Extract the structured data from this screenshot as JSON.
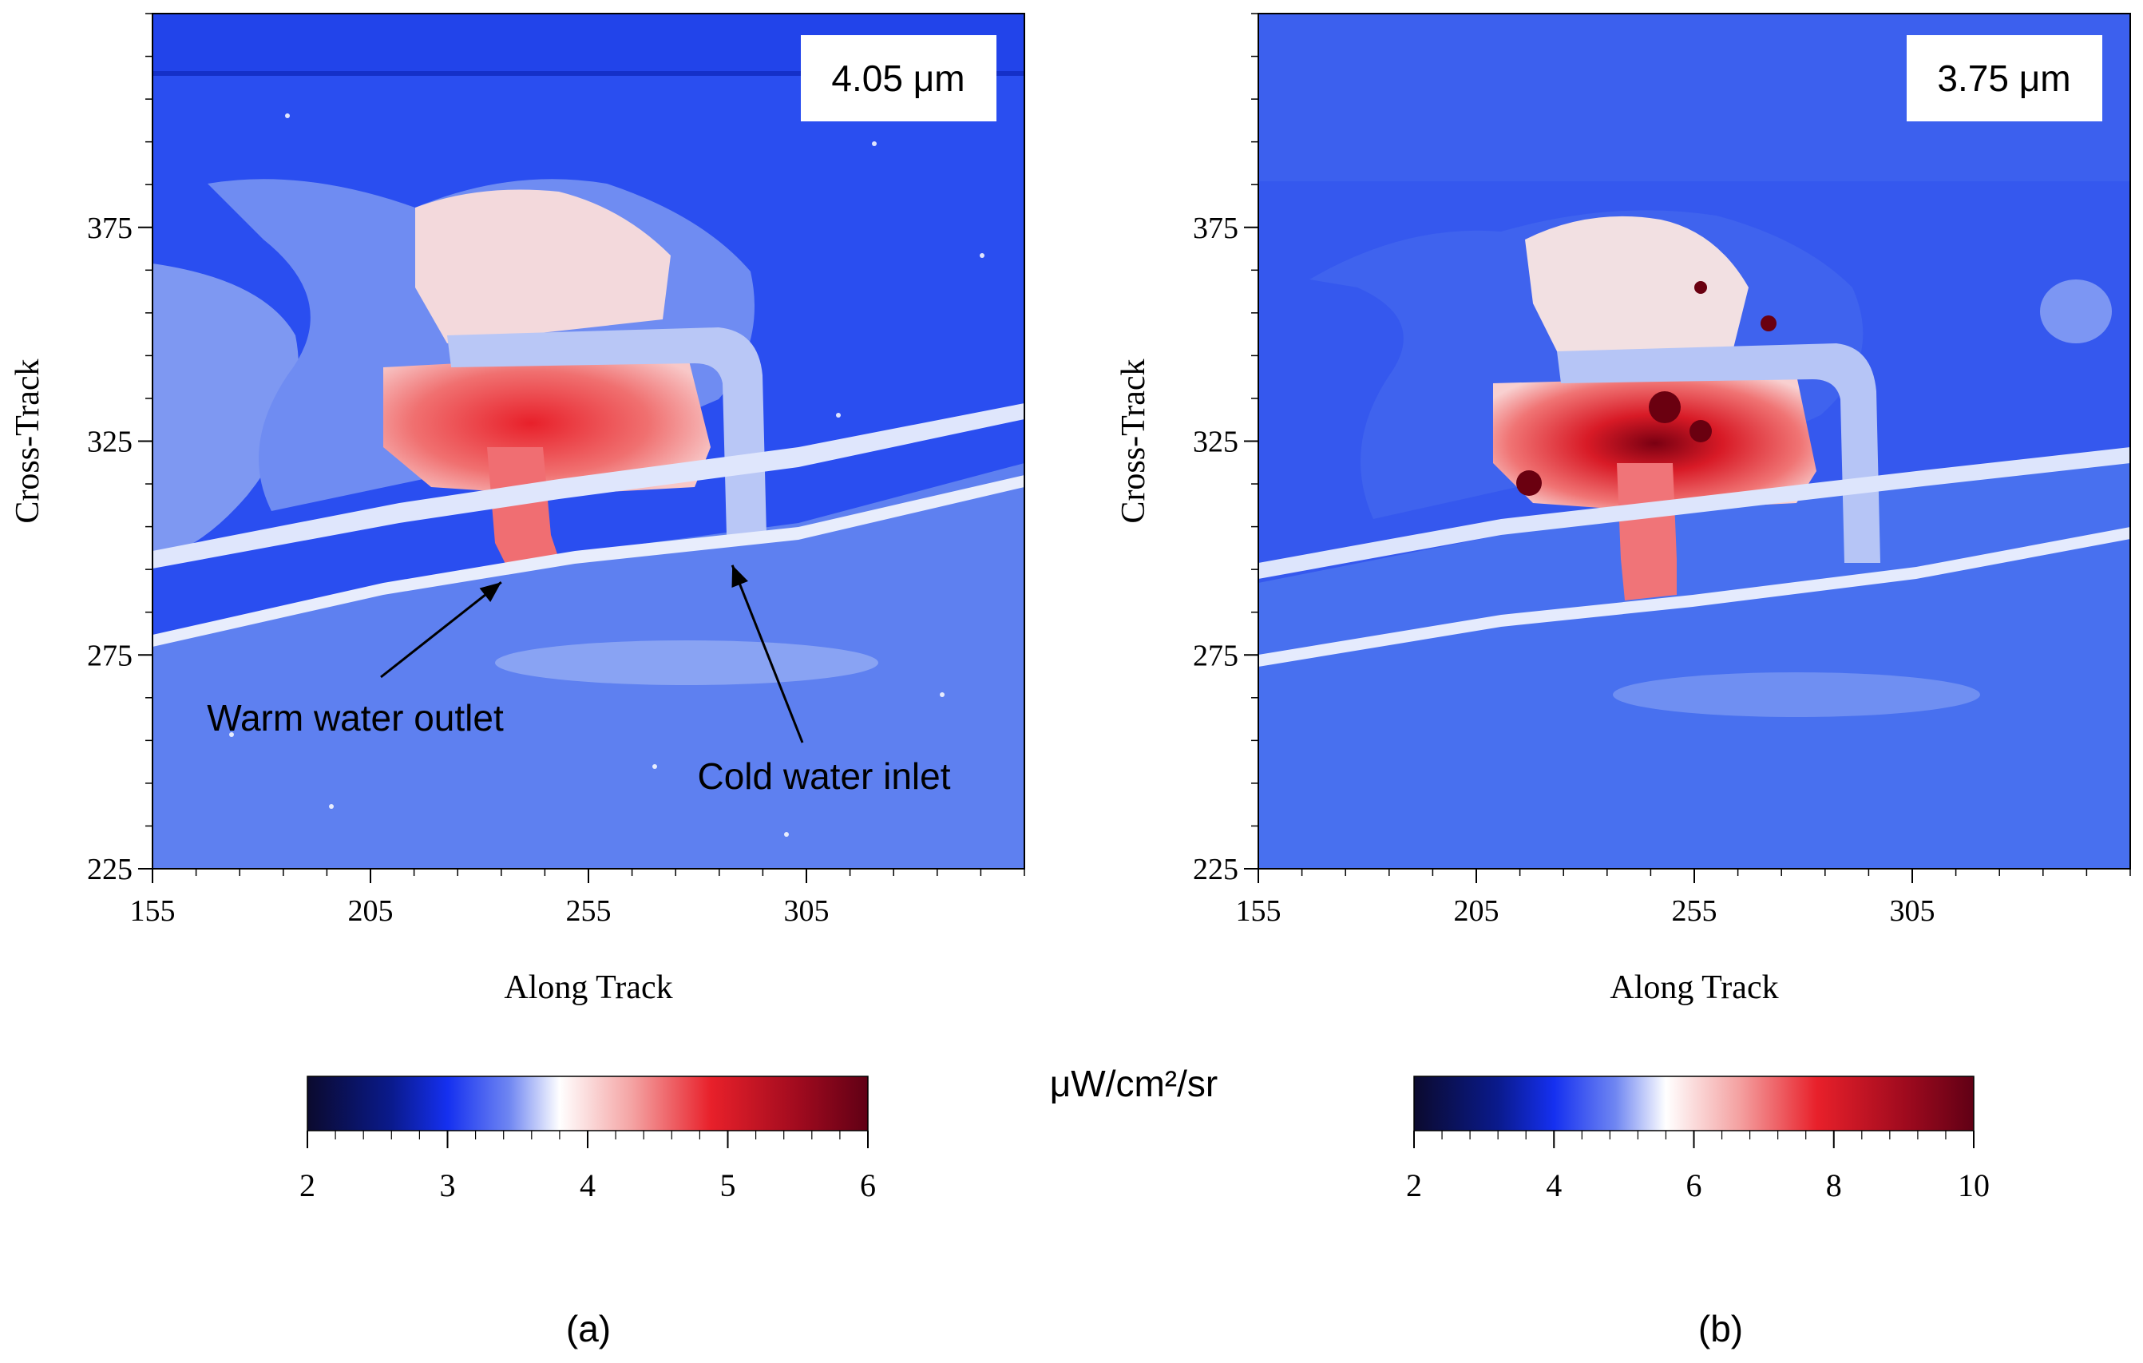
{
  "figure": {
    "units_label": "μW/cm²/sr",
    "colormap": [
      "#0b0a2e",
      "#0a1a8c",
      "#1530f0",
      "#6f86f2",
      "#ffffff",
      "#f4a2a2",
      "#e8202a",
      "#9e0a1e",
      "#600015"
    ],
    "colors": {
      "water_blue": "#4a6cf0",
      "deep_blue": "#1c3de0",
      "land_pale": "#9fb2f5",
      "hot_red": "#e8343a",
      "annotation_box": "#ffffff"
    }
  },
  "chart_data": [
    {
      "type": "heatmap",
      "panel_label": "(a)",
      "wavelength_label": "4.05 μm",
      "xlabel": "Along Track",
      "ylabel": "Cross-Track",
      "x_ticks": [
        155,
        205,
        255,
        305
      ],
      "y_ticks": [
        225,
        275,
        325,
        375
      ],
      "xlim": [
        155,
        355
      ],
      "ylim": [
        225,
        425
      ],
      "colorbar": {
        "ticks": [
          2,
          3,
          4,
          5,
          6
        ],
        "range": [
          2,
          6
        ]
      },
      "annotations": [
        {
          "text": "Warm water outlet",
          "target_x": 235,
          "target_y": 292
        },
        {
          "text": "Cold water inlet",
          "target_x": 288,
          "target_y": 296
        }
      ]
    },
    {
      "type": "heatmap",
      "panel_label": "(b)",
      "wavelength_label": "3.75 μm",
      "xlabel": "Along Track",
      "ylabel": "Cross-Track",
      "x_ticks": [
        155,
        205,
        255,
        305
      ],
      "y_ticks": [
        225,
        275,
        325,
        375
      ],
      "xlim": [
        155,
        355
      ],
      "ylim": [
        225,
        425
      ],
      "colorbar": {
        "ticks": [
          2,
          4,
          6,
          8,
          10
        ],
        "range": [
          2,
          10
        ]
      }
    }
  ]
}
